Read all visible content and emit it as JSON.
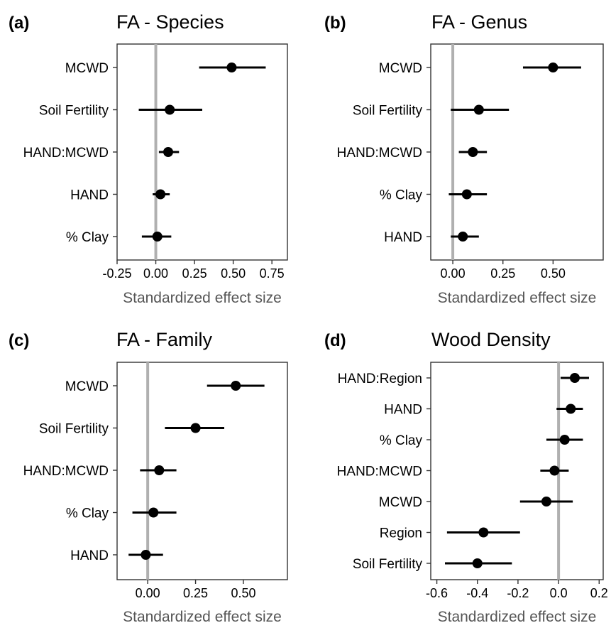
{
  "chart_data": [
    {
      "type": "scatter",
      "panel": "(a)",
      "title": "FA - Species",
      "xlabel": "Standardized effect size",
      "xlim": [
        -0.25,
        0.85
      ],
      "xticks": [
        -0.25,
        0.0,
        0.25,
        0.5,
        0.75
      ],
      "xtick_labels": [
        "-0.25",
        "0.00",
        "0.25",
        "0.50",
        "0.75"
      ],
      "reference_line": 0,
      "categories": [
        "MCWD",
        "Soil Fertility",
        "HAND:MCWD",
        "HAND",
        "% Clay"
      ],
      "estimates": [
        0.49,
        0.09,
        0.08,
        0.03,
        0.01
      ],
      "ci_low": [
        0.28,
        -0.11,
        0.02,
        -0.02,
        -0.09
      ],
      "ci_high": [
        0.71,
        0.3,
        0.15,
        0.09,
        0.1
      ]
    },
    {
      "type": "scatter",
      "panel": "(b)",
      "title": "FA - Genus",
      "xlabel": "Standardized effect size",
      "xlim": [
        -0.11,
        0.75
      ],
      "xticks": [
        0.0,
        0.25,
        0.5
      ],
      "xtick_labels": [
        "0.00",
        "0.25",
        "0.50"
      ],
      "reference_line": 0,
      "categories": [
        "MCWD",
        "Soil Fertility",
        "HAND:MCWD",
        "% Clay",
        "HAND"
      ],
      "estimates": [
        0.5,
        0.13,
        0.1,
        0.07,
        0.05
      ],
      "ci_low": [
        0.35,
        -0.01,
        0.03,
        -0.02,
        -0.01
      ],
      "ci_high": [
        0.64,
        0.28,
        0.17,
        0.17,
        0.13
      ]
    },
    {
      "type": "scatter",
      "panel": "(c)",
      "title": "FA - Family",
      "xlabel": "Standardized effect size",
      "xlim": [
        -0.16,
        0.73
      ],
      "xticks": [
        0.0,
        0.25,
        0.5
      ],
      "xtick_labels": [
        "0.00",
        "0.25",
        "0.50"
      ],
      "reference_line": 0,
      "categories": [
        "MCWD",
        "Soil Fertility",
        "HAND:MCWD",
        "% Clay",
        "HAND"
      ],
      "estimates": [
        0.46,
        0.25,
        0.06,
        0.03,
        -0.01
      ],
      "ci_low": [
        0.31,
        0.09,
        -0.04,
        -0.08,
        -0.1
      ],
      "ci_high": [
        0.61,
        0.4,
        0.15,
        0.15,
        0.08
      ]
    },
    {
      "type": "scatter",
      "panel": "(d)",
      "title": "Wood Density",
      "xlabel": "Standardized effect size",
      "xlim": [
        -0.63,
        0.22
      ],
      "xticks": [
        -0.6,
        -0.4,
        -0.2,
        0.0,
        0.2
      ],
      "xtick_labels": [
        "-0.6",
        "-0.4",
        "-0.2",
        "0.0",
        "0.2"
      ],
      "reference_line": 0,
      "categories": [
        "HAND:Region",
        "HAND",
        "% Clay",
        "HAND:MCWD",
        "MCWD",
        "Region",
        "Soil Fertility"
      ],
      "estimates": [
        0.08,
        0.06,
        0.03,
        -0.02,
        -0.06,
        -0.37,
        -0.4
      ],
      "ci_low": [
        0.01,
        -0.01,
        -0.06,
        -0.09,
        -0.19,
        -0.55,
        -0.56
      ],
      "ci_high": [
        0.15,
        0.12,
        0.12,
        0.05,
        0.07,
        -0.19,
        -0.23
      ]
    }
  ],
  "colors": {
    "reference_line": "#b0b0b0",
    "marker": "#000000",
    "frame": "#333333",
    "axis_title": "#555555"
  }
}
